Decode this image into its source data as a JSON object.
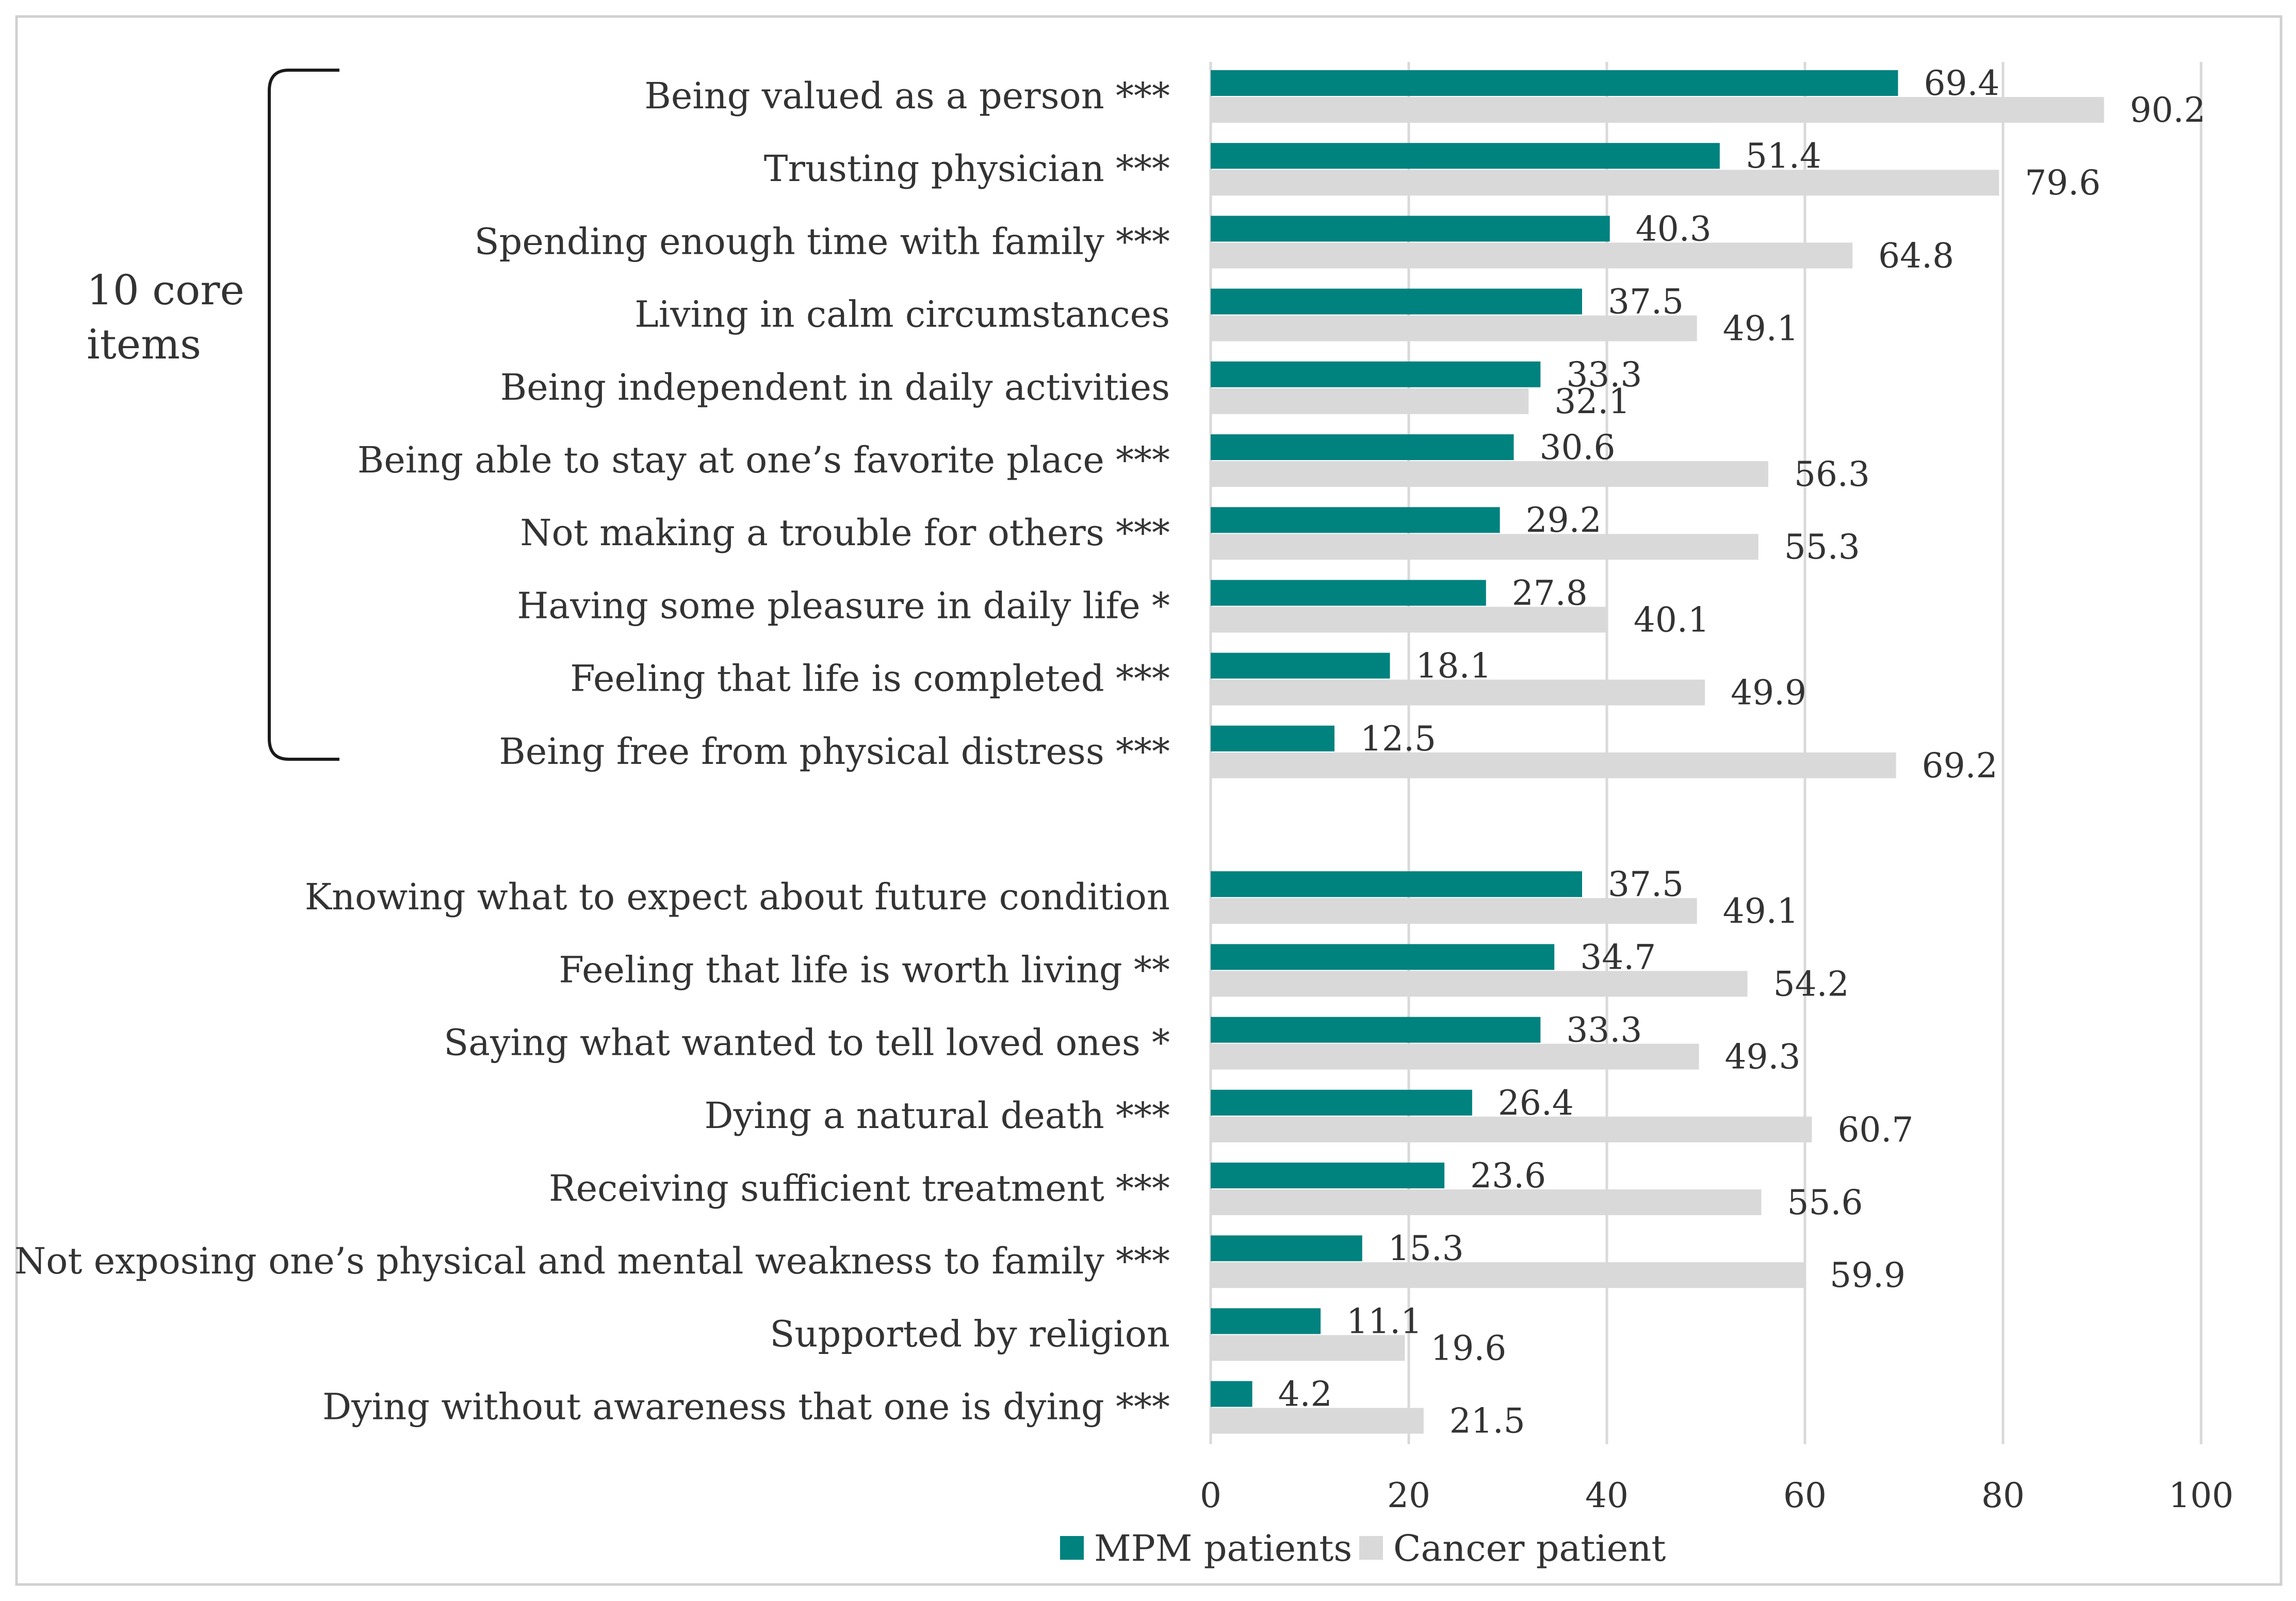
{
  "chart_data": {
    "type": "bar",
    "orientation": "horizontal",
    "title": "",
    "xlabel": "",
    "ylabel": "",
    "xlim": [
      0,
      100
    ],
    "xticks": [
      0,
      20,
      40,
      60,
      80,
      100
    ],
    "grid": "vertical",
    "legend_position": "bottom",
    "group_annotation": {
      "line1": "10 core",
      "line2": "items",
      "covers": "first 10 categories"
    },
    "categories": [
      "Being valued as a person ***",
      "Trusting physician ***",
      "Spending enough time with family ***",
      "Living in calm circumstances",
      "Being independent in daily activities",
      "Being able to stay at one’s favorite place ***",
      "Not making a trouble for others ***",
      "Having some pleasure in daily life *",
      "Feeling that life is completed ***",
      "Being free from physical distress ***",
      "Knowing what to expect about future condition",
      "Feeling that life is worth living **",
      "Saying what wanted to tell loved ones *",
      "Dying a natural death ***",
      "Receiving sufficient treatment ***",
      "Not exposing one’s physical and mental weakness to family ***",
      "Supported by religion",
      "Dying without awareness that one is dying ***"
    ],
    "series": [
      {
        "name": "MPM patients",
        "color": "#00827f",
        "values": [
          69.4,
          51.4,
          40.3,
          37.5,
          33.3,
          30.6,
          29.2,
          27.8,
          18.1,
          12.5,
          37.5,
          34.7,
          33.3,
          26.4,
          23.6,
          15.3,
          11.1,
          4.2
        ]
      },
      {
        "name": "Cancer patient",
        "color": "#d9d9d9",
        "values": [
          90.2,
          79.6,
          64.8,
          49.1,
          32.1,
          56.3,
          55.3,
          40.1,
          49.9,
          69.2,
          49.1,
          54.2,
          49.3,
          60.7,
          55.6,
          59.9,
          19.6,
          21.5
        ]
      }
    ]
  }
}
